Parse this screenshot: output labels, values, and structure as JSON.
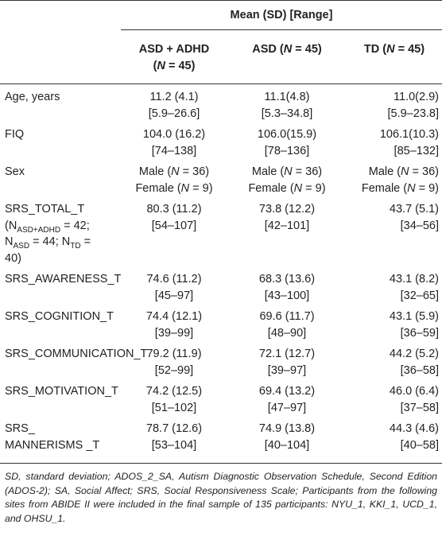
{
  "table": {
    "group_header": "Mean (SD) [Range]",
    "columns": [
      [
        [
          "ASD + ADHD"
        ],
        [
          "(",
          {
            "em": "N"
          },
          " = 45)"
        ]
      ],
      [
        [
          "ASD (",
          {
            "em": "N"
          },
          " = 45)"
        ]
      ],
      [
        [
          "TD (",
          {
            "em": "N"
          },
          " = 45)"
        ]
      ]
    ],
    "rows": [
      {
        "label": [
          "Age, years"
        ],
        "cells": [
          [
            "11.2 (4.1)",
            "[5.9–26.6]"
          ],
          [
            "11.1(4.8)",
            "[5.3–34.8]"
          ],
          [
            "11.0(2.9)",
            "[5.9–23.8]"
          ]
        ]
      },
      {
        "label": [
          "FIQ"
        ],
        "cells": [
          [
            "104.0 (16.2)",
            "[74–138]"
          ],
          [
            "106.0(15.9)",
            "[78–136]"
          ],
          [
            "106.1(10.3)",
            "[85–132]"
          ]
        ]
      },
      {
        "label": [
          "Sex"
        ],
        "cells": [
          [
            [
              "Male (",
              {
                "em": "N"
              },
              " = 36)"
            ],
            [
              "Female (",
              {
                "em": "N"
              },
              " = 9)"
            ]
          ],
          [
            [
              "Male (",
              {
                "em": "N"
              },
              " = 36)"
            ],
            [
              "Female (",
              {
                "em": "N"
              },
              " = 9)"
            ]
          ],
          [
            [
              "Male (",
              {
                "em": "N"
              },
              " = 36)"
            ],
            [
              "Female (",
              {
                "em": "N"
              },
              " = 9)"
            ]
          ]
        ]
      },
      {
        "label": [
          "SRS_TOTAL_T",
          [
            "(N",
            {
              "sub": "ASD+ADHD"
            },
            " = 42;"
          ],
          [
            "N",
            {
              "sub": "ASD"
            },
            " = 44; N",
            {
              "sub": "TD"
            },
            " ="
          ],
          "40)"
        ],
        "cells": [
          [
            "80.3 (11.2)",
            "[54–107]"
          ],
          [
            "73.8 (12.2)",
            "[42–101]"
          ],
          [
            "43.7 (5.1)",
            "[34–56]"
          ]
        ]
      },
      {
        "label": [
          "SRS_AWARENESS_T"
        ],
        "cells": [
          [
            "74.6 (11.2)",
            "[45–97]"
          ],
          [
            "68.3 (13.6)",
            "[43–100]"
          ],
          [
            "43.1 (8.2)",
            "[32–65]"
          ]
        ]
      },
      {
        "label": [
          "SRS_COGNITION_T"
        ],
        "cells": [
          [
            "74.4 (12.1)",
            "[39–99]"
          ],
          [
            "69.6 (11.7)",
            "[48–90]"
          ],
          [
            "43.1 (5.9)",
            "[36–59]"
          ]
        ]
      },
      {
        "label": [
          "SRS_COMMUNICATION_T"
        ],
        "cells": [
          [
            "79.2 (11.9)",
            "[52–99]"
          ],
          [
            "72.1 (12.7)",
            "[39–97]"
          ],
          [
            "44.2 (5.2)",
            "[36–58]"
          ]
        ]
      },
      {
        "label": [
          "SRS_MOTIVATION_T"
        ],
        "cells": [
          [
            "74.2 (12.5)",
            "[51–102]"
          ],
          [
            "69.4 (13.2)",
            "[47–97]"
          ],
          [
            "46.0 (6.4)",
            "[37–58]"
          ]
        ]
      },
      {
        "label": [
          "SRS_",
          "MANNERISMS _T"
        ],
        "cells": [
          [
            "78.7 (12.6)",
            "[53–104]"
          ],
          [
            "74.9 (13.8)",
            "[40–104]"
          ],
          [
            "44.3 (4.6)",
            "[40–58]"
          ]
        ]
      }
    ],
    "footnote": "SD, standard deviation; ADOS_2_SA, Autism Diagnostic Observation Schedule, Second Edition (ADOS-2); SA, Social Affect; SRS, Social Responsiveness Scale; Participants from the following sites from ABIDE II were included in the final sample of 135 participants: NYU_1, KKI_1, UCD_1, and OHSU_1."
  }
}
